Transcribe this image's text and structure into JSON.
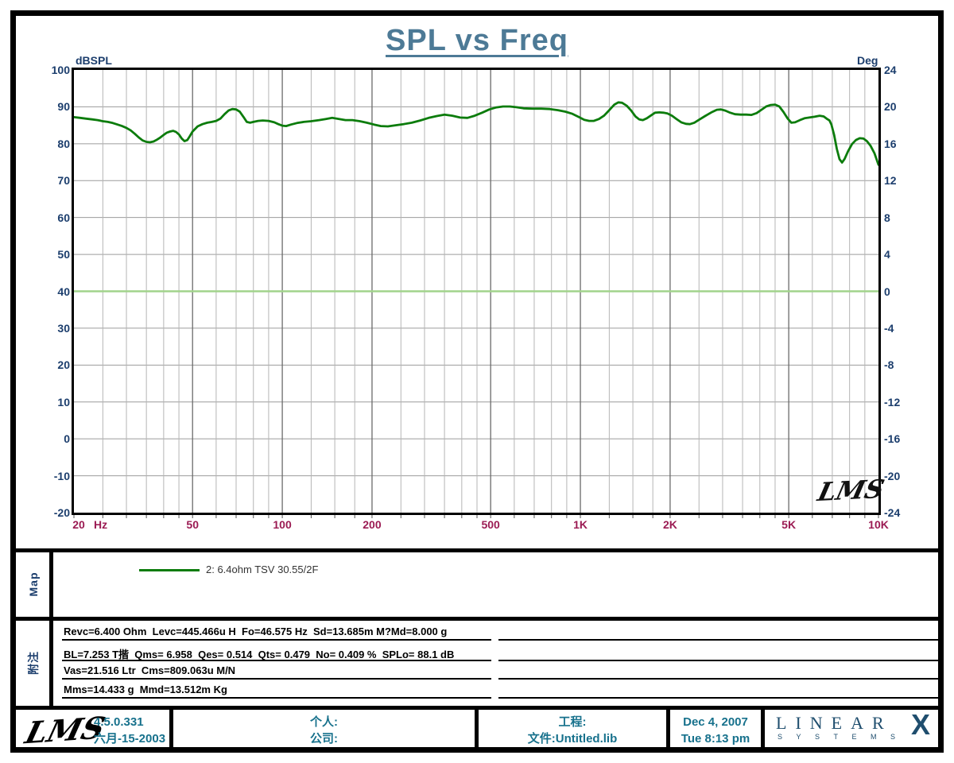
{
  "title": "SPL vs Freq",
  "colors": {
    "title": "#4d7a96",
    "axis_text": "#1c3e6d",
    "freq_text": "#9b1b53",
    "spl_curve": "#0c7c0c",
    "phase_curve": "#a2d38c",
    "grid_minor": "#b5b5b5",
    "grid_major": "#6a6a6a",
    "grid_horizontal": "#9c9c9c",
    "footer_text": "#17718c",
    "brand": "#1f4e6e"
  },
  "chart_data": {
    "type": "line",
    "title": "SPL vs Freq",
    "x_scale": "log",
    "x_range": [
      20,
      10000
    ],
    "x_unit": "Hz",
    "left_axis": {
      "label": "dBSPL",
      "min": -20,
      "max": 100,
      "ticks": [
        "100",
        "90",
        "80",
        "70",
        "60",
        "50",
        "40",
        "30",
        "20",
        "10",
        "0",
        "-10",
        "-20"
      ]
    },
    "right_axis": {
      "label": "Deg",
      "min": -24,
      "max": 24,
      "ticks": [
        "24",
        "20",
        "16",
        "12",
        "8",
        "4",
        "0",
        "-4",
        "-8",
        "-12",
        "-16",
        "-20",
        "-24"
      ]
    },
    "x_major_ticks": [
      {
        "f": 20,
        "label": "20"
      },
      {
        "f": 50,
        "label": "50"
      },
      {
        "f": 100,
        "label": "100"
      },
      {
        "f": 200,
        "label": "200"
      },
      {
        "f": 500,
        "label": "500"
      },
      {
        "f": 1000,
        "label": "1K"
      },
      {
        "f": 2000,
        "label": "2K"
      },
      {
        "f": 5000,
        "label": "5K"
      },
      {
        "f": 10000,
        "label": "10K"
      }
    ],
    "x_minor_gridlines": [
      25,
      30,
      35,
      40,
      45,
      60,
      70,
      80,
      90,
      125,
      150,
      175,
      250,
      300,
      350,
      400,
      450,
      600,
      700,
      800,
      900,
      1250,
      1500,
      1750,
      2500,
      3000,
      3500,
      4000,
      4500,
      6000,
      7000,
      8000,
      9000
    ],
    "grid": true,
    "legend_position": "map-panel-below",
    "watermark": "LMS",
    "series": [
      {
        "name": "2: 6.4ohm TSV 30.55/2F",
        "axis": "left",
        "color": "#0c7c0c",
        "width": 2.8,
        "points": [
          [
            20,
            87.2
          ],
          [
            21,
            87.0
          ],
          [
            22,
            86.8
          ],
          [
            23,
            86.6
          ],
          [
            24,
            86.4
          ],
          [
            25,
            86.1
          ],
          [
            26,
            85.9
          ],
          [
            27,
            85.6
          ],
          [
            28,
            85.2
          ],
          [
            29,
            84.8
          ],
          [
            30,
            84.3
          ],
          [
            31,
            83.6
          ],
          [
            32,
            82.7
          ],
          [
            33,
            81.7
          ],
          [
            34,
            80.9
          ],
          [
            35,
            80.5
          ],
          [
            36,
            80.4
          ],
          [
            37,
            80.6
          ],
          [
            38,
            81.1
          ],
          [
            39,
            81.7
          ],
          [
            40,
            82.4
          ],
          [
            41,
            83.0
          ],
          [
            42,
            83.3
          ],
          [
            43,
            83.5
          ],
          [
            44,
            83.2
          ],
          [
            45,
            82.5
          ],
          [
            46,
            81.4
          ],
          [
            47,
            80.7
          ],
          [
            48,
            81.0
          ],
          [
            49,
            82.1
          ],
          [
            50,
            83.3
          ],
          [
            52,
            84.7
          ],
          [
            54,
            85.3
          ],
          [
            56,
            85.7
          ],
          [
            58,
            85.9
          ],
          [
            60,
            86.2
          ],
          [
            62,
            86.8
          ],
          [
            64,
            88.0
          ],
          [
            66,
            89.0
          ],
          [
            68,
            89.4
          ],
          [
            70,
            89.3
          ],
          [
            72,
            88.7
          ],
          [
            74,
            87.3
          ],
          [
            76,
            85.9
          ],
          [
            78,
            85.7
          ],
          [
            80,
            85.9
          ],
          [
            83,
            86.2
          ],
          [
            86,
            86.3
          ],
          [
            90,
            86.2
          ],
          [
            94,
            85.8
          ],
          [
            97,
            85.3
          ],
          [
            100,
            84.9
          ],
          [
            103,
            84.8
          ],
          [
            107,
            85.2
          ],
          [
            112,
            85.6
          ],
          [
            118,
            85.9
          ],
          [
            125,
            86.1
          ],
          [
            133,
            86.4
          ],
          [
            140,
            86.7
          ],
          [
            147,
            87.0
          ],
          [
            155,
            86.7
          ],
          [
            163,
            86.4
          ],
          [
            172,
            86.4
          ],
          [
            182,
            86.1
          ],
          [
            192,
            85.7
          ],
          [
            203,
            85.2
          ],
          [
            214,
            84.8
          ],
          [
            226,
            84.7
          ],
          [
            240,
            85.0
          ],
          [
            255,
            85.3
          ],
          [
            272,
            85.7
          ],
          [
            290,
            86.3
          ],
          [
            310,
            87.0
          ],
          [
            330,
            87.5
          ],
          [
            350,
            87.9
          ],
          [
            372,
            87.6
          ],
          [
            395,
            87.1
          ],
          [
            418,
            87.0
          ],
          [
            442,
            87.6
          ],
          [
            468,
            88.4
          ],
          [
            495,
            89.3
          ],
          [
            520,
            89.8
          ],
          [
            550,
            90.1
          ],
          [
            580,
            90.1
          ],
          [
            610,
            89.9
          ],
          [
            645,
            89.6
          ],
          [
            690,
            89.5
          ],
          [
            740,
            89.5
          ],
          [
            790,
            89.4
          ],
          [
            840,
            89.1
          ],
          [
            890,
            88.7
          ],
          [
            940,
            88.1
          ],
          [
            990,
            87.2
          ],
          [
            1030,
            86.5
          ],
          [
            1070,
            86.2
          ],
          [
            1110,
            86.2
          ],
          [
            1155,
            86.7
          ],
          [
            1200,
            87.6
          ],
          [
            1250,
            89.1
          ],
          [
            1300,
            90.6
          ],
          [
            1340,
            91.2
          ],
          [
            1380,
            91.1
          ],
          [
            1430,
            90.3
          ],
          [
            1480,
            89.0
          ],
          [
            1530,
            87.4
          ],
          [
            1575,
            86.6
          ],
          [
            1620,
            86.4
          ],
          [
            1670,
            86.9
          ],
          [
            1720,
            87.6
          ],
          [
            1780,
            88.4
          ],
          [
            1840,
            88.5
          ],
          [
            1900,
            88.4
          ],
          [
            1960,
            88.2
          ],
          [
            2030,
            87.6
          ],
          [
            2100,
            86.7
          ],
          [
            2180,
            85.8
          ],
          [
            2260,
            85.4
          ],
          [
            2330,
            85.3
          ],
          [
            2410,
            85.7
          ],
          [
            2500,
            86.5
          ],
          [
            2620,
            87.5
          ],
          [
            2750,
            88.5
          ],
          [
            2870,
            89.2
          ],
          [
            2960,
            89.3
          ],
          [
            3060,
            89.0
          ],
          [
            3160,
            88.5
          ],
          [
            3300,
            88.0
          ],
          [
            3450,
            87.9
          ],
          [
            3600,
            87.9
          ],
          [
            3750,
            87.8
          ],
          [
            3900,
            88.3
          ],
          [
            4050,
            89.2
          ],
          [
            4200,
            90.1
          ],
          [
            4350,
            90.5
          ],
          [
            4500,
            90.6
          ],
          [
            4650,
            90.1
          ],
          [
            4800,
            88.6
          ],
          [
            4950,
            86.9
          ],
          [
            5100,
            85.7
          ],
          [
            5250,
            85.8
          ],
          [
            5450,
            86.4
          ],
          [
            5650,
            86.9
          ],
          [
            5850,
            87.1
          ],
          [
            6100,
            87.3
          ],
          [
            6350,
            87.6
          ],
          [
            6550,
            87.4
          ],
          [
            6700,
            86.8
          ],
          [
            6850,
            86.3
          ],
          [
            6950,
            85.2
          ],
          [
            7100,
            82.4
          ],
          [
            7250,
            78.6
          ],
          [
            7400,
            75.8
          ],
          [
            7550,
            74.9
          ],
          [
            7700,
            75.9
          ],
          [
            7900,
            77.9
          ],
          [
            8150,
            79.9
          ],
          [
            8400,
            81.0
          ],
          [
            8650,
            81.5
          ],
          [
            8900,
            81.4
          ],
          [
            9150,
            80.7
          ],
          [
            9400,
            79.5
          ],
          [
            9700,
            77.4
          ],
          [
            10000,
            74.3
          ]
        ]
      },
      {
        "name": "phase-flat-0deg",
        "axis": "right",
        "color": "#a2d38c",
        "width": 2.6,
        "points": [
          [
            20,
            0
          ],
          [
            10000,
            0
          ]
        ]
      }
    ]
  },
  "map_panel": {
    "label": "Map",
    "legend": {
      "text": "2: 6.4ohm TSV 30.55/2F",
      "color": "#0c7c0c"
    }
  },
  "notes_panel": {
    "label": "附注",
    "lines": [
      "Revc=6.400 Ohm  Levc=445.466u H  Fo=46.575 Hz  Sd=13.685m M?Md=8.000 g",
      "BL=7.253 T揩  Qms= 6.958  Qes= 0.514  Qts= 0.479  No= 0.409 %  SPLo= 88.1 dB",
      "Vas=21.516 Ltr  Cms=809.063u M/N",
      "Mms=14.433 g  Mmd=13.512m Kg"
    ],
    "rule_rows": [
      804,
      830,
      853,
      877
    ]
  },
  "footer": {
    "logo_text": "LMS",
    "version": "4.5.0.331",
    "build_date": "六月-15-2003",
    "personal_label": "个人:",
    "company_label": "公司:",
    "project_label": "工程:",
    "file_label": "文件:Untitled.lib",
    "date": "Dec  4, 2007",
    "time": "Tue  8:13 pm",
    "brand": {
      "linear": "LINEAR",
      "x": "X",
      "systems": "SYSTEMS"
    }
  }
}
